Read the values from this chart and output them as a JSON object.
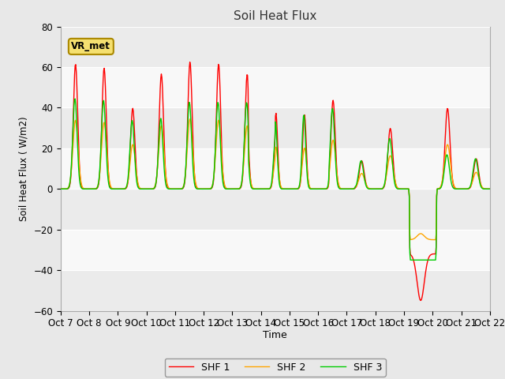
{
  "title": "Soil Heat Flux",
  "xlabel": "Time",
  "ylabel": "Soil Heat Flux ( W/m2)",
  "ylim": [
    -60,
    80
  ],
  "yticks": [
    -60,
    -40,
    -20,
    0,
    20,
    40,
    60,
    80
  ],
  "xlim": [
    0,
    360
  ],
  "xtick_positions": [
    0,
    24,
    48,
    72,
    96,
    120,
    144,
    168,
    192,
    216,
    240,
    264,
    288,
    312,
    336,
    360
  ],
  "xtick_labels": [
    "Oct 7",
    "Oct 8",
    "Oct 9",
    "Oct 10",
    "Oct 11",
    "Oct 12",
    "Oct 13",
    "Oct 14",
    "Oct 15",
    "Oct 16",
    "Oct 17",
    "Oct 18",
    "Oct 19",
    "Oct 20",
    "Oct 21",
    "Oct 22"
  ],
  "shf1_color": "#ff0000",
  "shf2_color": "#ffa500",
  "shf3_color": "#00cc00",
  "annotation_text": "VR_met",
  "bg_color": "#e8e8e8",
  "plot_bg_color": "#e0e0e0",
  "grid_color": "#f0f0f0",
  "legend_labels": [
    "SHF 1",
    "SHF 2",
    "SHF 3"
  ],
  "linewidth": 1.0
}
